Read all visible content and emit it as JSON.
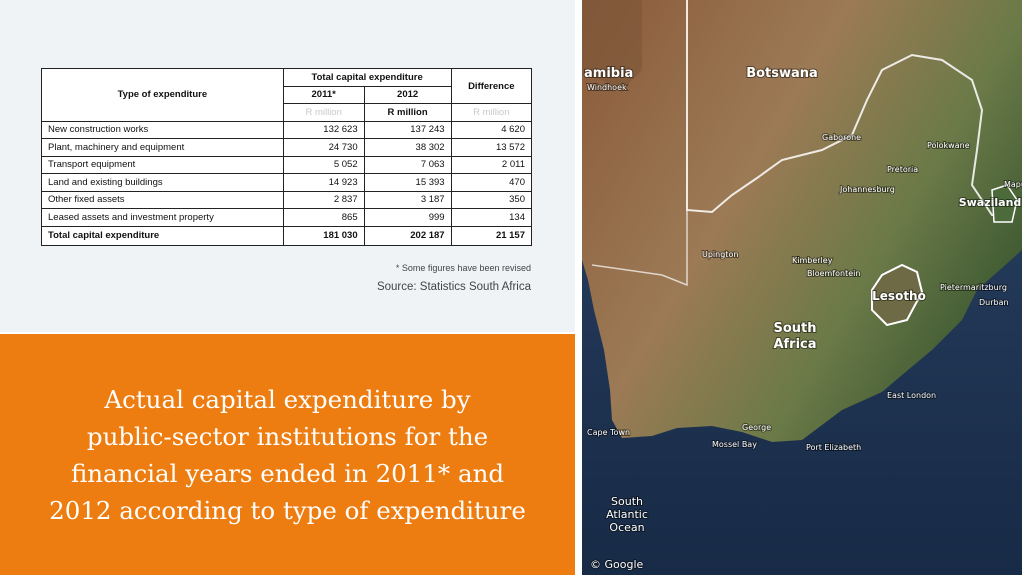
{
  "table": {
    "header": {
      "type": "Type of expenditure",
      "group": "Total capital expenditure",
      "years": [
        "2011*",
        "2012"
      ],
      "difference": "Difference",
      "units": [
        "R million",
        "R million",
        "R million"
      ]
    },
    "rows": [
      [
        "New construction works",
        "132 623",
        "137 243",
        "4 620"
      ],
      [
        "Plant, machinery and equipment",
        "24 730",
        "38 302",
        "13 572"
      ],
      [
        "Transport equipment",
        "5 052",
        "7 063",
        "2 011"
      ],
      [
        "Land and existing buildings",
        "14 923",
        "15 393",
        "470"
      ],
      [
        "Other fixed assets",
        "2 837",
        "3 187",
        "350"
      ],
      [
        "Leased assets and investment property",
        "865",
        "999",
        "134"
      ],
      [
        "Total capital expenditure",
        "181 030",
        "202 187",
        "21 157"
      ]
    ]
  },
  "footnote": "* Some figures have been revised",
  "source": "Source: Statistics South Africa",
  "caption": [
    "Actual capital expenditure by",
    "public-sector institutions for the",
    "financial years ended in 2011* and",
    "2012 according to type of expenditure"
  ],
  "map": {
    "countries": [
      "amibia",
      "Botswana",
      "South",
      "Africa",
      "Lesotho",
      "Swaziland"
    ],
    "ocean": [
      "South",
      "Atlantic",
      "Ocean"
    ],
    "places": [
      "Windhoek",
      "Gaborone",
      "Pretoria",
      "Johannesburg",
      "Bloemfontein",
      "Kimberley",
      "Upington",
      "Durban",
      "Pietermaritzburg",
      "East London",
      "Port Elizabeth",
      "Cape Town",
      "George",
      "Maputo",
      "Polokwane",
      "Mossel Bay"
    ],
    "credit": "© Google"
  }
}
